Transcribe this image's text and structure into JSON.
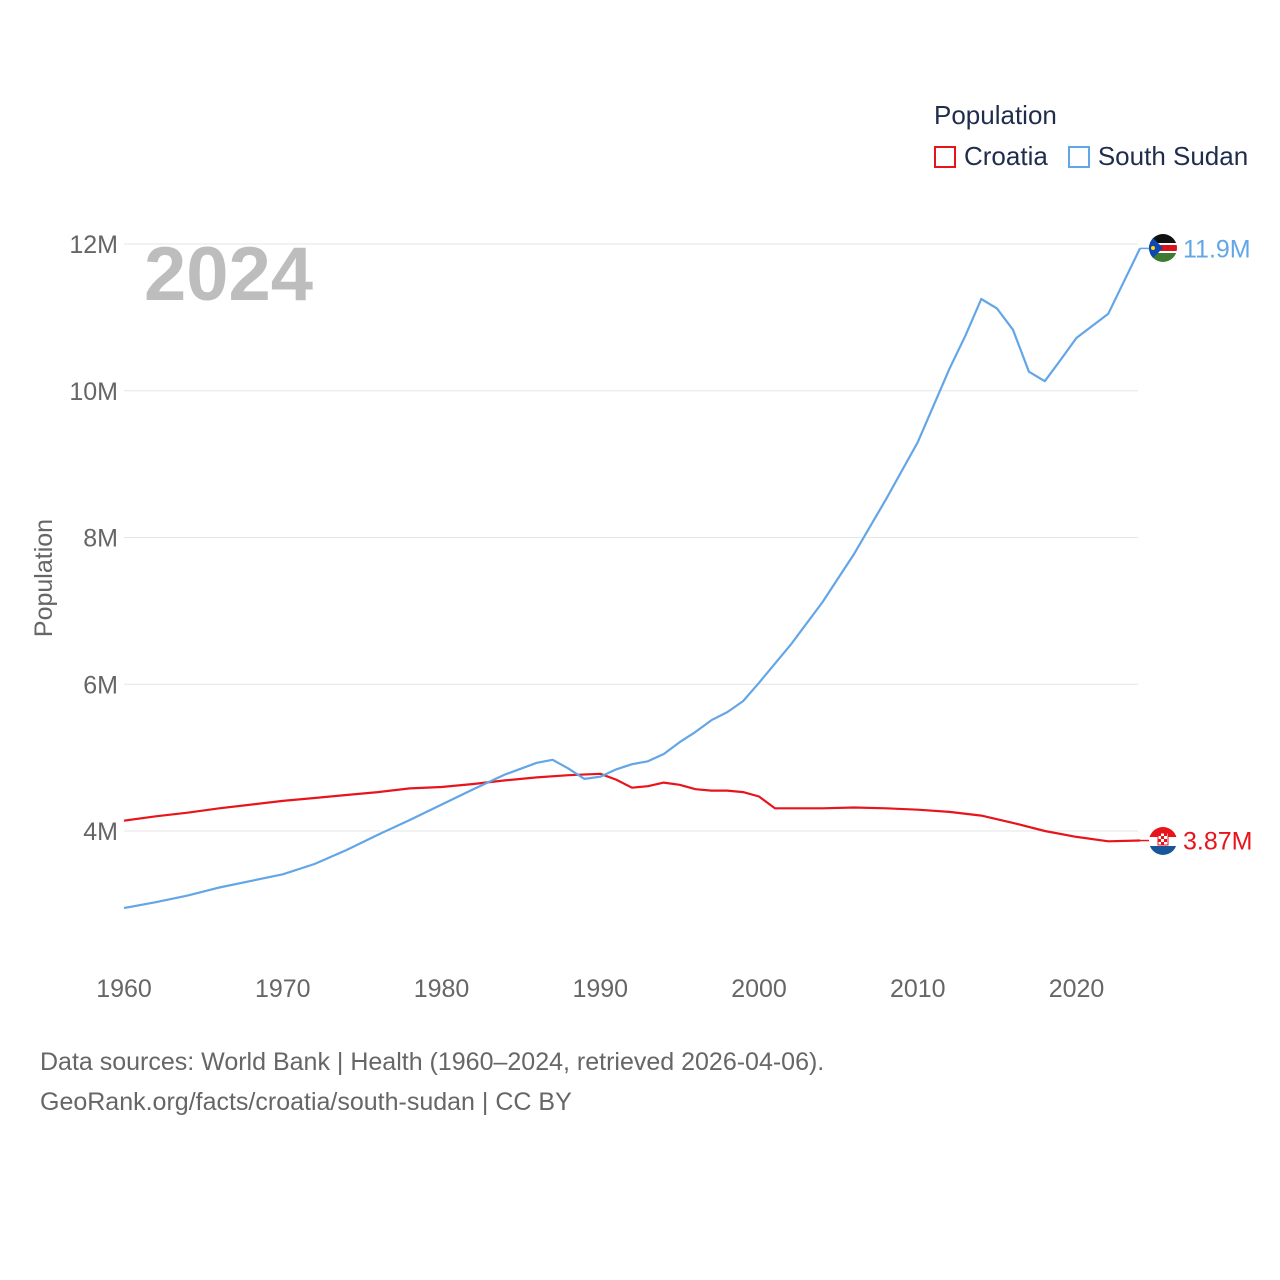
{
  "legend": {
    "title": "Population",
    "items": [
      {
        "label": "Croatia",
        "color": "#e8141c"
      },
      {
        "label": "South Sudan",
        "color": "#62a6e7"
      }
    ]
  },
  "year_watermark": "2024",
  "source": {
    "line1": "Data sources: World Bank | Health (1960–2024, retrieved 2026-04-06).",
    "line2": "GeoRank.org/facts/croatia/south-sudan | CC BY"
  },
  "chart_data": {
    "type": "line",
    "title": "Population",
    "xlabel": "",
    "ylabel": "Population",
    "xlim": [
      1960,
      2024
    ],
    "ylim": [
      2500000,
      12200000
    ],
    "x_ticks": [
      1960,
      1970,
      1980,
      1990,
      2000,
      2010,
      2020
    ],
    "y_ticks": [
      {
        "value": 4000000,
        "label": "4M"
      },
      {
        "value": 6000000,
        "label": "6M"
      },
      {
        "value": 8000000,
        "label": "8M"
      },
      {
        "value": 10000000,
        "label": "10M"
      },
      {
        "value": 12000000,
        "label": "12M"
      }
    ],
    "grid": true,
    "series": [
      {
        "name": "Croatia",
        "color": "#e8141c",
        "end_label": "3.87M",
        "flag": "croatia-flag",
        "x": [
          1960,
          1962,
          1964,
          1966,
          1968,
          1970,
          1972,
          1974,
          1976,
          1978,
          1980,
          1982,
          1984,
          1986,
          1988,
          1990,
          1991,
          1992,
          1993,
          1994,
          1995,
          1996,
          1997,
          1998,
          1999,
          2000,
          2001,
          2002,
          2004,
          2006,
          2008,
          2010,
          2012,
          2014,
          2016,
          2018,
          2020,
          2022,
          2024
        ],
        "values": [
          4140000,
          4200000,
          4250000,
          4310000,
          4360000,
          4410000,
          4450000,
          4490000,
          4530000,
          4580000,
          4600000,
          4640000,
          4690000,
          4730000,
          4760000,
          4780000,
          4700000,
          4590000,
          4610000,
          4660000,
          4630000,
          4570000,
          4550000,
          4550000,
          4530000,
          4470000,
          4310000,
          4310000,
          4310000,
          4320000,
          4310000,
          4290000,
          4260000,
          4210000,
          4110000,
          4000000,
          3920000,
          3860000,
          3870000
        ]
      },
      {
        "name": "South Sudan",
        "color": "#62a6e7",
        "end_label": "11.9M",
        "flag": "south-sudan-flag",
        "x": [
          1960,
          1962,
          1964,
          1966,
          1968,
          1970,
          1972,
          1974,
          1976,
          1978,
          1980,
          1982,
          1984,
          1986,
          1987,
          1988,
          1989,
          1990,
          1991,
          1992,
          1993,
          1994,
          1995,
          1996,
          1997,
          1998,
          1999,
          2000,
          2002,
          2004,
          2006,
          2008,
          2010,
          2012,
          2013,
          2014,
          2015,
          2016,
          2017,
          2018,
          2019,
          2020,
          2022,
          2024
        ],
        "values": [
          2950000,
          3030000,
          3120000,
          3230000,
          3320000,
          3410000,
          3550000,
          3740000,
          3950000,
          4150000,
          4360000,
          4570000,
          4770000,
          4930000,
          4970000,
          4850000,
          4710000,
          4740000,
          4840000,
          4910000,
          4950000,
          5050000,
          5210000,
          5350000,
          5510000,
          5620000,
          5770000,
          6020000,
          6540000,
          7120000,
          7780000,
          8520000,
          9300000,
          10300000,
          10750000,
          11250000,
          11120000,
          10830000,
          10260000,
          10130000,
          10420000,
          10720000,
          11050000,
          11940000
        ]
      }
    ]
  }
}
